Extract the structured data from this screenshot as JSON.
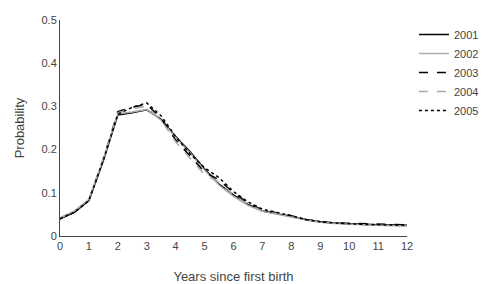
{
  "chart_data": {
    "type": "line",
    "x_label": "Years since first birth",
    "y_label": "Probability",
    "x": [
      0,
      0.5,
      1,
      1.5,
      2,
      2.5,
      3,
      3.5,
      4,
      4.5,
      5,
      5.5,
      6,
      6.5,
      7,
      7.5,
      8,
      8.5,
      9,
      9.5,
      10,
      10.5,
      11,
      11.5,
      12
    ],
    "series": [
      {
        "name": "2001",
        "color": "#000000",
        "line_style": "solid",
        "values": [
          0.04,
          0.055,
          0.082,
          0.175,
          0.28,
          0.285,
          0.292,
          0.27,
          0.23,
          0.195,
          0.155,
          0.12,
          0.095,
          0.073,
          0.058,
          0.052,
          0.045,
          0.038,
          0.033,
          0.03,
          0.028,
          0.027,
          0.026,
          0.026,
          0.025
        ]
      },
      {
        "name": "2002",
        "color": "#aaaaaa",
        "line_style": "solid",
        "values": [
          0.042,
          0.058,
          0.085,
          0.178,
          0.283,
          0.287,
          0.293,
          0.268,
          0.228,
          0.192,
          0.152,
          0.118,
          0.092,
          0.071,
          0.057,
          0.051,
          0.044,
          0.037,
          0.032,
          0.029,
          0.027,
          0.026,
          0.025,
          0.024,
          0.023
        ]
      },
      {
        "name": "2003",
        "color": "#000000",
        "line_style": "dashed",
        "values": [
          0.04,
          0.056,
          0.083,
          0.178,
          0.288,
          0.298,
          0.305,
          0.272,
          0.222,
          0.185,
          0.148,
          0.13,
          0.1,
          0.077,
          0.06,
          0.054,
          0.047,
          0.038,
          0.033,
          0.03,
          0.029,
          0.028,
          0.027,
          0.026,
          0.026
        ]
      },
      {
        "name": "2004",
        "color": "#aaaaaa",
        "line_style": "dashed",
        "values": [
          0.041,
          0.057,
          0.084,
          0.18,
          0.285,
          0.295,
          0.3,
          0.268,
          0.218,
          0.18,
          0.142,
          0.125,
          0.095,
          0.073,
          0.058,
          0.052,
          0.045,
          0.037,
          0.032,
          0.029,
          0.027,
          0.026,
          0.025,
          0.024,
          0.023
        ]
      },
      {
        "name": "2005",
        "color": "#000000",
        "line_style": "dotted",
        "values": [
          0.04,
          0.055,
          0.082,
          0.176,
          0.282,
          0.298,
          0.308,
          0.278,
          0.23,
          0.19,
          0.158,
          0.135,
          0.103,
          0.079,
          0.062,
          0.055,
          0.047,
          0.038,
          0.033,
          0.03,
          0.028,
          0.027,
          0.026,
          0.025,
          0.025
        ]
      }
    ],
    "xlim": [
      0,
      12
    ],
    "ylim": [
      0,
      0.5
    ],
    "xticks": [
      0,
      1,
      2,
      3,
      4,
      5,
      6,
      7,
      8,
      9,
      10,
      11,
      12
    ],
    "yticks": [
      0,
      0.1,
      0.2,
      0.3,
      0.4,
      0.5
    ],
    "grid": false,
    "legend": "right"
  }
}
